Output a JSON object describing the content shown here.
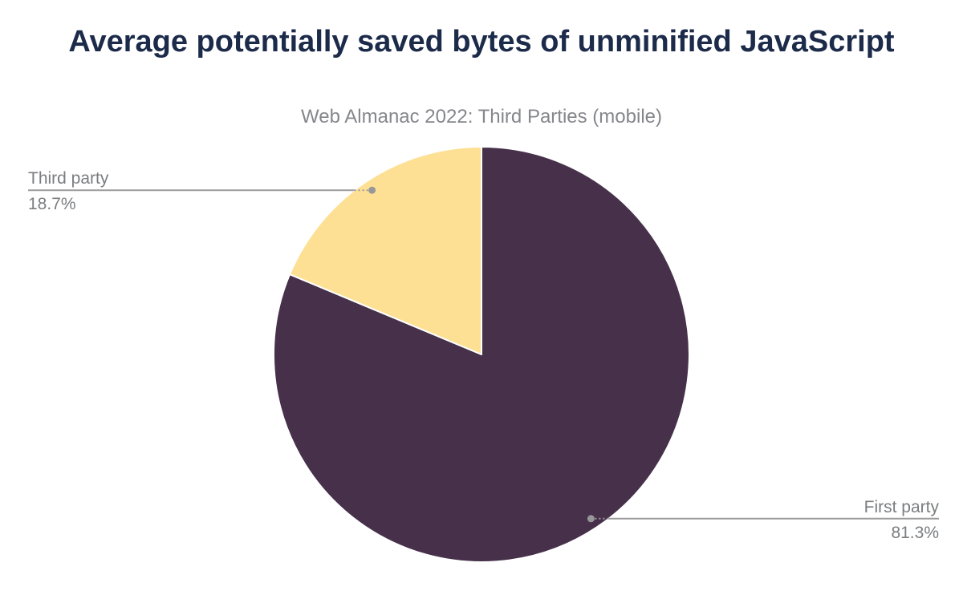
{
  "header": {
    "title": "Average potentially saved bytes of unminified JavaScript",
    "subtitle": "Web Almanac 2022: Third Parties (mobile)"
  },
  "chart_data": {
    "type": "pie",
    "title": "Average potentially saved bytes of unminified JavaScript",
    "subtitle": "Web Almanac 2022: Third Parties (mobile)",
    "unit": "%",
    "total": 100,
    "start_angle_deg": 0,
    "direction": "clockwise",
    "legend_position": "none",
    "label_style": "outside callout with leader line and dot marker",
    "slices": [
      {
        "label": "First party",
        "value": 81.3,
        "display": "81.3%",
        "color": "#46304a",
        "callout_side": "right"
      },
      {
        "label": "Third party",
        "value": 18.7,
        "display": "18.7%",
        "color": "#fde093",
        "callout_side": "left"
      }
    ]
  },
  "colors": {
    "title_text": "#1c2b4a",
    "subtitle_text": "#85878c",
    "callout_text": "#7b7d80",
    "leader_line": "#9b9b9b",
    "leader_dot": "#97979a",
    "slice_separator": "#ffffff",
    "background": "#ffffff"
  }
}
